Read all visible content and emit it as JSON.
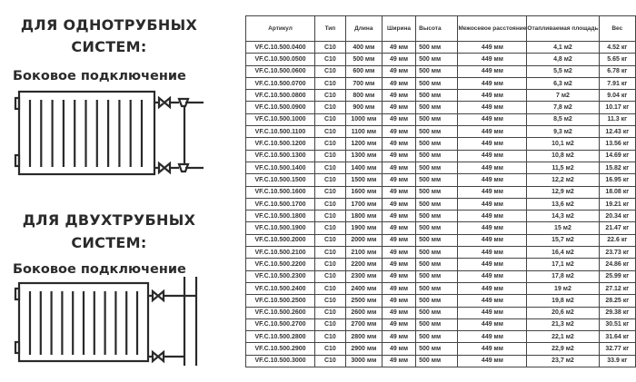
{
  "single_pipe": {
    "title_line1": "ДЛЯ ОДНОТРУБНЫХ",
    "title_line2": "СИСТЕМ:",
    "connection": "Боковое подключение"
  },
  "two_pipe": {
    "title_line1": "ДЛЯ ДВУХТРУБНЫХ",
    "title_line2": "СИСТЕМ:",
    "connection": "Боковое подключение"
  },
  "table": {
    "headers": [
      "Артикул",
      "Тип",
      "Длина",
      "Ширина",
      "Высота",
      "Межосевое расстояние",
      "Отапливаемая площадь",
      "Вес"
    ],
    "rows": [
      [
        "VF.C.10.500.0400",
        "C10",
        "400 мм",
        "49 мм",
        "500 мм",
        "449 мм",
        "4,1 м2",
        "4.52 кг"
      ],
      [
        "VF.C.10.500.0500",
        "C10",
        "500 мм",
        "49 мм",
        "500 мм",
        "449 мм",
        "4,8 м2",
        "5.65 кг"
      ],
      [
        "VF.C.10.500.0600",
        "C10",
        "600 мм",
        "49 мм",
        "500 мм",
        "449 мм",
        "5,5 м2",
        "6.78 кг"
      ],
      [
        "VF.C.10.500.0700",
        "C10",
        "700 мм",
        "49 мм",
        "500 мм",
        "449 мм",
        "6,3 м2",
        "7.91 кг"
      ],
      [
        "VF.C.10.500.0800",
        "C10",
        "800 мм",
        "49 мм",
        "500 мм",
        "449 мм",
        "7 м2",
        "9.04 кг"
      ],
      [
        "VF.C.10.500.0900",
        "C10",
        "900 мм",
        "49 мм",
        "500 мм",
        "449 мм",
        "7,8 м2",
        "10.17 кг"
      ],
      [
        "VF.C.10.500.1000",
        "C10",
        "1000 мм",
        "49 мм",
        "500 мм",
        "449 мм",
        "8,5 м2",
        "11.3 кг"
      ],
      [
        "VF.C.10.500.1100",
        "C10",
        "1100 мм",
        "49 мм",
        "500 мм",
        "449 мм",
        "9,3 м2",
        "12.43 кг"
      ],
      [
        "VF.C.10.500.1200",
        "C10",
        "1200 мм",
        "49 мм",
        "500 мм",
        "449 мм",
        "10,1 м2",
        "13.56 кг"
      ],
      [
        "VF.C.10.500.1300",
        "C10",
        "1300 мм",
        "49 мм",
        "500 мм",
        "449 мм",
        "10,8 м2",
        "14.69 кг"
      ],
      [
        "VF.C.10.500.1400",
        "C10",
        "1400 мм",
        "49 мм",
        "500 мм",
        "449 мм",
        "11,5 м2",
        "15.82 кг"
      ],
      [
        "VF.C.10.500.1500",
        "C10",
        "1500 мм",
        "49 мм",
        "500 мм",
        "449 мм",
        "12,2 м2",
        "16.95 кг"
      ],
      [
        "VF.C.10.500.1600",
        "C10",
        "1600 мм",
        "49 мм",
        "500 мм",
        "449 мм",
        "12,9 м2",
        "18.08 кг"
      ],
      [
        "VF.C.10.500.1700",
        "C10",
        "1700 мм",
        "49 мм",
        "500 мм",
        "449 мм",
        "13,6 м2",
        "19.21 кг"
      ],
      [
        "VF.C.10.500.1800",
        "C10",
        "1800 мм",
        "49 мм",
        "500 мм",
        "449 мм",
        "14,3 м2",
        "20.34 кг"
      ],
      [
        "VF.C.10.500.1900",
        "C10",
        "1900 мм",
        "49 мм",
        "500 мм",
        "449 мм",
        "15 м2",
        "21.47 кг"
      ],
      [
        "VF.C.10.500.2000",
        "C10",
        "2000 мм",
        "49 мм",
        "500 мм",
        "449 мм",
        "15,7 м2",
        "22.6 кг"
      ],
      [
        "VF.C.10.500.2100",
        "C10",
        "2100 мм",
        "49 мм",
        "500 мм",
        "449 мм",
        "16,4 м2",
        "23.73 кг"
      ],
      [
        "VF.C.10.500.2200",
        "C10",
        "2200 мм",
        "49 мм",
        "500 мм",
        "449 мм",
        "17,1 м2",
        "24.86 кг"
      ],
      [
        "VF.C.10.500.2300",
        "C10",
        "2300 мм",
        "49 мм",
        "500 мм",
        "449 мм",
        "17,8 м2",
        "25.99 кг"
      ],
      [
        "VF.C.10.500.2400",
        "C10",
        "2400 мм",
        "49 мм",
        "500 мм",
        "449 мм",
        "19 м2",
        "27.12 кг"
      ],
      [
        "VF.C.10.500.2500",
        "C10",
        "2500 мм",
        "49 мм",
        "500 мм",
        "449 мм",
        "19,8 м2",
        "28.25 кг"
      ],
      [
        "VF.C.10.500.2600",
        "C10",
        "2600 мм",
        "49 мм",
        "500 мм",
        "449 мм",
        "20,6 м2",
        "29.38 кг"
      ],
      [
        "VF.C.10.500.2700",
        "C10",
        "2700 мм",
        "49 мм",
        "500 мм",
        "449 мм",
        "21,3 м2",
        "30.51 кг"
      ],
      [
        "VF.C.10.500.2800",
        "C10",
        "2800 мм",
        "49 мм",
        "500 мм",
        "449 мм",
        "22,1 м2",
        "31.64 кг"
      ],
      [
        "VF.C.10.500.2900",
        "C10",
        "2900 мм",
        "49 мм",
        "500 мм",
        "449 мм",
        "22,9 м2",
        "32.77 кг"
      ],
      [
        "VF.C.10.500.3000",
        "C10",
        "3000 мм",
        "49 мм",
        "500 мм",
        "449 мм",
        "23,7 м2",
        "33.9 кг"
      ]
    ]
  }
}
